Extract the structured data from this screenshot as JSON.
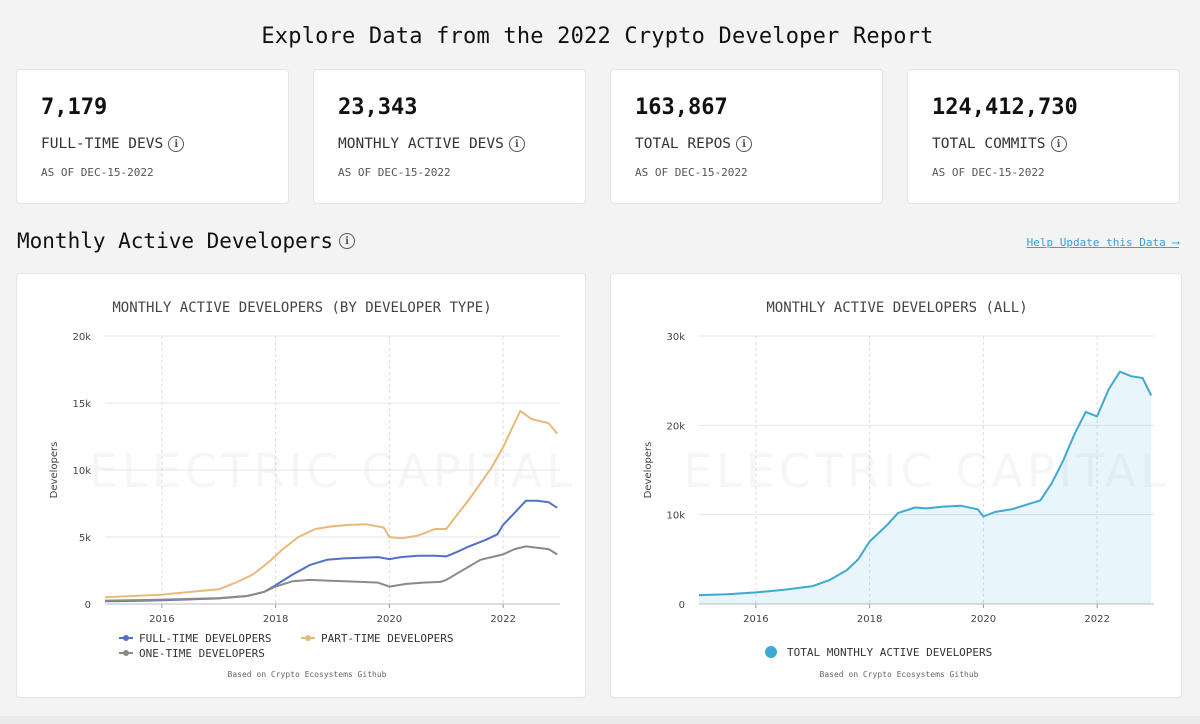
{
  "page": {
    "title": "Explore Data from the 2022 Crypto Developer Report"
  },
  "stats": [
    {
      "value": "7,179",
      "label": "FULL-TIME DEVS",
      "date": "AS OF DEC-15-2022"
    },
    {
      "value": "23,343",
      "label": "MONTHLY ACTIVE DEVS",
      "date": "AS OF DEC-15-2022"
    },
    {
      "value": "163,867",
      "label": "TOTAL REPOS",
      "date": "AS OF DEC-15-2022"
    },
    {
      "value": "124,412,730",
      "label": "TOTAL COMMITS",
      "date": "AS OF DEC-15-2022"
    }
  ],
  "section": {
    "title": "Monthly Active Developers",
    "help_link": "Help Update this Data ⟶",
    "info_glyph": "i"
  },
  "watermark": "ELECTRIC CAPITAL",
  "source_note": "Based on Crypto Ecosystems Github",
  "chart_data": [
    {
      "type": "line",
      "title": "MONTHLY ACTIVE DEVELOPERS (BY DEVELOPER TYPE)",
      "ylabel": "Developers",
      "ylim": [
        0,
        20000
      ],
      "xlim": [
        2015.0,
        2023.0
      ],
      "yticks": [
        0,
        5000,
        10000,
        15000,
        20000
      ],
      "ytick_labels": [
        "0",
        "5k",
        "10k",
        "15k",
        "20k"
      ],
      "xticks": [
        2016,
        2018,
        2020,
        2022
      ],
      "xtick_labels": [
        "2016",
        "2018",
        "2020",
        "2022"
      ],
      "series": [
        {
          "name": "FULL-TIME DEVELOPERS",
          "color": "#5470c6",
          "x": [
            2015.0,
            2015.5,
            2016.0,
            2016.5,
            2017.0,
            2017.5,
            2017.8,
            2018.0,
            2018.3,
            2018.6,
            2018.9,
            2019.2,
            2019.5,
            2019.8,
            2020.0,
            2020.2,
            2020.5,
            2020.8,
            2021.0,
            2021.2,
            2021.4,
            2021.7,
            2021.9,
            2022.0,
            2022.2,
            2022.4,
            2022.6,
            2022.8,
            2022.95
          ],
          "values": [
            200,
            230,
            280,
            340,
            420,
            600,
            900,
            1400,
            2200,
            2900,
            3300,
            3400,
            3450,
            3500,
            3350,
            3500,
            3600,
            3600,
            3550,
            3900,
            4300,
            4800,
            5200,
            5900,
            6800,
            7700,
            7700,
            7600,
            7179
          ]
        },
        {
          "name": "PART-TIME DEVELOPERS",
          "color": "#e8b97a",
          "x": [
            2015.0,
            2015.5,
            2016.0,
            2016.5,
            2017.0,
            2017.3,
            2017.6,
            2017.9,
            2018.1,
            2018.4,
            2018.7,
            2019.0,
            2019.3,
            2019.6,
            2019.9,
            2020.0,
            2020.2,
            2020.5,
            2020.8,
            2021.0,
            2021.2,
            2021.4,
            2021.6,
            2021.8,
            2022.0,
            2022.2,
            2022.3,
            2022.5,
            2022.7,
            2022.8,
            2022.95
          ],
          "values": [
            500,
            600,
            700,
            900,
            1100,
            1600,
            2200,
            3200,
            4000,
            5000,
            5600,
            5800,
            5900,
            5950,
            5700,
            5000,
            4900,
            5100,
            5600,
            5600,
            6700,
            7800,
            9000,
            10200,
            11700,
            13500,
            14400,
            13800,
            13600,
            13500,
            12700
          ]
        },
        {
          "name": "ONE-TIME DEVELOPERS",
          "color": "#8a8a8a",
          "x": [
            2015.0,
            2015.5,
            2016.0,
            2016.5,
            2017.0,
            2017.5,
            2017.8,
            2018.0,
            2018.3,
            2018.6,
            2018.9,
            2019.2,
            2019.5,
            2019.8,
            2020.0,
            2020.3,
            2020.6,
            2020.9,
            2021.0,
            2021.2,
            2021.4,
            2021.6,
            2021.8,
            2022.0,
            2022.2,
            2022.4,
            2022.6,
            2022.8,
            2022.95
          ],
          "values": [
            250,
            280,
            330,
            380,
            440,
            600,
            900,
            1300,
            1700,
            1800,
            1750,
            1700,
            1650,
            1600,
            1300,
            1500,
            1600,
            1650,
            1800,
            2300,
            2800,
            3300,
            3500,
            3700,
            4100,
            4300,
            4200,
            4100,
            3700
          ]
        }
      ],
      "legend": [
        "FULL-TIME DEVELOPERS",
        "PART-TIME DEVELOPERS",
        "ONE-TIME DEVELOPERS"
      ]
    },
    {
      "type": "area",
      "title": "MONTHLY ACTIVE DEVELOPERS (ALL)",
      "ylabel": "Developers",
      "ylim": [
        0,
        30000
      ],
      "xlim": [
        2015.0,
        2023.0
      ],
      "yticks": [
        0,
        10000,
        20000,
        30000
      ],
      "ytick_labels": [
        "0",
        "10k",
        "20k",
        "30k"
      ],
      "xticks": [
        2016,
        2018,
        2020,
        2022
      ],
      "xtick_labels": [
        "2016",
        "2018",
        "2020",
        "2022"
      ],
      "series": [
        {
          "name": "TOTAL MONTHLY ACTIVE DEVELOPERS",
          "color": "#3fa9d3",
          "x": [
            2015.0,
            2015.5,
            2016.0,
            2016.5,
            2017.0,
            2017.3,
            2017.6,
            2017.8,
            2018.0,
            2018.3,
            2018.5,
            2018.8,
            2019.0,
            2019.3,
            2019.6,
            2019.9,
            2020.0,
            2020.2,
            2020.5,
            2020.8,
            2021.0,
            2021.2,
            2021.4,
            2021.6,
            2021.8,
            2022.0,
            2022.2,
            2022.4,
            2022.6,
            2022.8,
            2022.95
          ],
          "values": [
            1000,
            1100,
            1300,
            1600,
            2000,
            2700,
            3800,
            5000,
            7000,
            8800,
            10200,
            10800,
            10700,
            10900,
            11000,
            10600,
            9800,
            10300,
            10600,
            11200,
            11600,
            13500,
            16000,
            19000,
            21500,
            21000,
            24000,
            26000,
            25500,
            25300,
            23343
          ]
        }
      ],
      "legend": [
        "TOTAL MONTHLY ACTIVE DEVELOPERS"
      ]
    }
  ]
}
